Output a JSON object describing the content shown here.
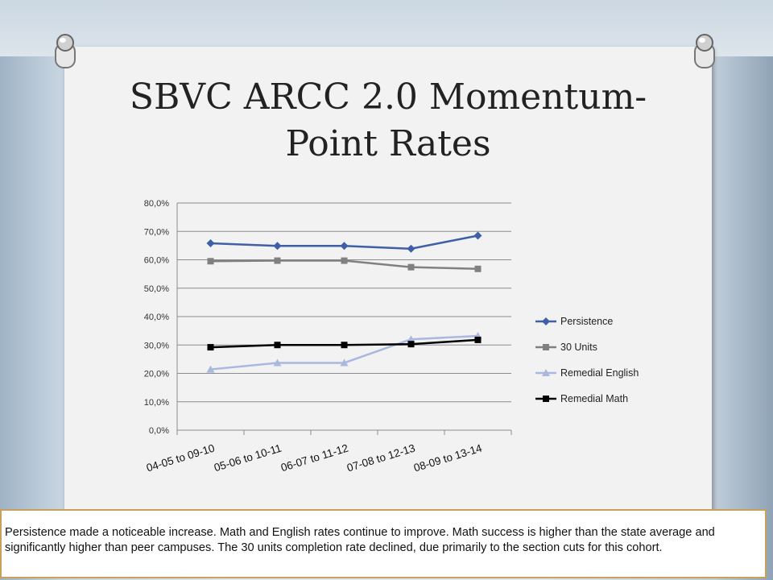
{
  "slide": {
    "title_line1": "SBVC ARCC 2.0 Momentum-",
    "title_line2": "Point Rates",
    "caption": "Persistence made a noticeable increase. Math and English rates continue to improve.  Math success is higher than the state average and significantly higher than peer campuses.  The 30 units completion rate declined, due primarily to the section cuts for this cohort."
  },
  "chart_data": {
    "type": "line",
    "categories": [
      "04-05 to 09-10",
      "05-06 to 10-11",
      "06-07 to 11-12",
      "07-08 to 12-13",
      "08-09 to 13-14"
    ],
    "ylim": [
      0,
      80
    ],
    "yticks": [
      "0,0%",
      "10,0%",
      "20,0%",
      "30,0%",
      "40,0%",
      "50,0%",
      "60,0%",
      "70,0%",
      "80,0%"
    ],
    "legend_position": "right",
    "grid": true,
    "series": [
      {
        "name": "Persistence",
        "values": [
          65.8,
          64.9,
          64.9,
          63.9,
          68.5
        ],
        "color": "#3f5fa6",
        "marker": "diamond"
      },
      {
        "name": "30 Units",
        "values": [
          59.5,
          59.7,
          59.7,
          57.4,
          56.8
        ],
        "color": "#808080",
        "marker": "square"
      },
      {
        "name": "Remedial English",
        "values": [
          21.4,
          23.7,
          23.7,
          32.0,
          33.2
        ],
        "color": "#aab8e0",
        "marker": "triangle"
      },
      {
        "name": "Remedial Math",
        "values": [
          29.2,
          30.0,
          30.0,
          30.3,
          31.8
        ],
        "color": "#000000",
        "marker": "square"
      }
    ]
  }
}
